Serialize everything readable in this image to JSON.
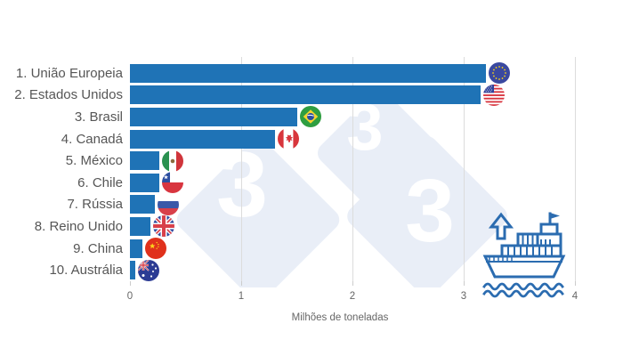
{
  "chart_data": {
    "type": "bar",
    "orientation": "horizontal",
    "title": "",
    "xlabel": "Milhões de toneladas",
    "ylabel": "",
    "xlim": [
      0,
      4
    ],
    "x_ticks": [
      "0",
      "1",
      "2",
      "3",
      "4"
    ],
    "grid": true,
    "categories": [
      "1. União Europeia",
      "2. Estados Unidos",
      "3. Brasil",
      "4. Canadá",
      "5. México",
      "6. Chile",
      "7. Rússia",
      "8. Reino Unido",
      "9. China",
      "10. Austrália"
    ],
    "values": [
      3.2,
      3.15,
      1.5,
      1.3,
      0.26,
      0.26,
      0.22,
      0.18,
      0.11,
      0.05
    ],
    "flags": [
      "eu-flag-icon",
      "us-flag-icon",
      "brazil-flag-icon",
      "canada-flag-icon",
      "mexico-flag-icon",
      "chile-flag-icon",
      "russia-flag-icon",
      "uk-flag-icon",
      "china-flag-icon",
      "australia-flag-icon"
    ]
  },
  "watermark": {
    "digit": "3",
    "brand": "333"
  },
  "colors": {
    "bar": "#1f73b6",
    "category_text": "#565656",
    "axis_text": "#666666",
    "gridline": "#dcdcdc",
    "watermark_diamond": "#e9eef7",
    "watermark_digit": "#ffffff",
    "ship_blue": "#2b6cb0"
  }
}
